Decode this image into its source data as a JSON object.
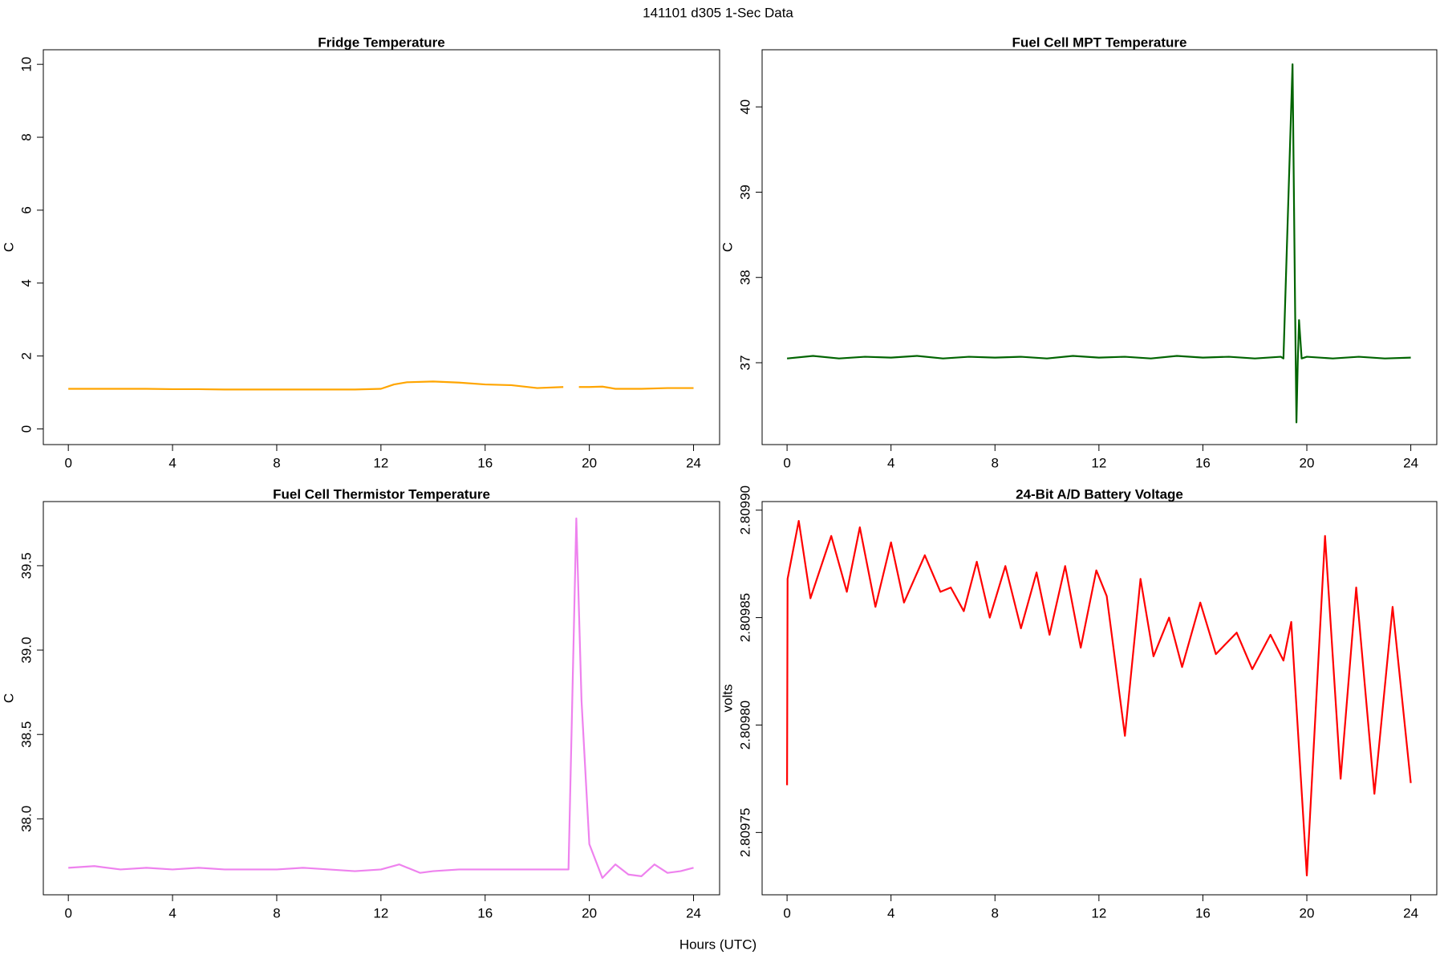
{
  "title": "141101   d305   1-Sec Data",
  "xlabel": "Hours (UTC)",
  "chart_data": [
    {
      "type": "line",
      "title": "Fridge Temperature",
      "ylabel": "C",
      "color": "#ffa500",
      "xlim": [
        -0.96,
        25.0
      ],
      "xticks": [
        0,
        4,
        8,
        12,
        16,
        20,
        24
      ],
      "ylim": [
        -0.43,
        10.4
      ],
      "yticks": [
        0,
        2,
        4,
        6,
        8,
        10
      ],
      "x": [
        0,
        1,
        2,
        3,
        4,
        5,
        6,
        7,
        8,
        9,
        10,
        11,
        12,
        12.5,
        13,
        14,
        15,
        16,
        17,
        18,
        19,
        19.3,
        19.6,
        20,
        20.5,
        21,
        22,
        23,
        24
      ],
      "values": [
        1.1,
        1.1,
        1.1,
        1.1,
        1.09,
        1.09,
        1.08,
        1.08,
        1.08,
        1.08,
        1.08,
        1.08,
        1.1,
        1.22,
        1.28,
        1.3,
        1.27,
        1.22,
        1.2,
        1.12,
        1.15,
        null,
        1.15,
        1.15,
        1.16,
        1.1,
        1.1,
        1.12,
        1.12
      ]
    },
    {
      "type": "line",
      "title": "Fuel Cell MPT Temperature",
      "ylabel": "C",
      "color": "#006400",
      "xlim": [
        -0.96,
        25.0
      ],
      "xticks": [
        0,
        4,
        8,
        12,
        16,
        20,
        24
      ],
      "ylim": [
        36.04,
        40.67
      ],
      "yticks": [
        37,
        38,
        39,
        40
      ],
      "x": [
        0,
        1,
        2,
        3,
        4,
        5,
        6,
        7,
        8,
        9,
        10,
        11,
        12,
        13,
        14,
        15,
        16,
        17,
        18,
        19,
        19.1,
        19.45,
        19.55,
        19.6,
        19.65,
        19.7,
        19.8,
        20,
        21,
        22,
        23,
        24
      ],
      "values": [
        37.05,
        37.08,
        37.05,
        37.07,
        37.06,
        37.08,
        37.05,
        37.07,
        37.06,
        37.07,
        37.05,
        37.08,
        37.06,
        37.07,
        37.05,
        37.08,
        37.06,
        37.07,
        37.05,
        37.07,
        37.05,
        40.5,
        37.6,
        36.3,
        37.0,
        37.5,
        37.05,
        37.07,
        37.05,
        37.07,
        37.05,
        37.06
      ]
    },
    {
      "type": "line",
      "title": "Fuel Cell Thermistor Temperature",
      "ylabel": "C",
      "color": "#ee82ee",
      "xlim": [
        -0.96,
        25.0
      ],
      "xticks": [
        0,
        4,
        8,
        12,
        16,
        20,
        24
      ],
      "ylim": [
        37.55,
        39.88
      ],
      "yticks": [
        {
          "value": 38.0,
          "label": "38.0"
        },
        38.5,
        {
          "value": 39.0,
          "label": "39.0"
        },
        39.5
      ],
      "x": [
        0,
        1,
        2,
        3,
        4,
        5,
        6,
        7,
        8,
        9,
        10,
        11,
        12,
        12.7,
        13.5,
        14,
        15,
        16,
        17,
        18,
        19,
        19.2,
        19.5,
        19.7,
        20,
        20.5,
        21,
        21.5,
        22,
        22.5,
        23,
        23.5,
        24
      ],
      "values": [
        37.71,
        37.72,
        37.7,
        37.71,
        37.7,
        37.71,
        37.7,
        37.7,
        37.7,
        37.71,
        37.7,
        37.69,
        37.7,
        37.73,
        37.68,
        37.69,
        37.7,
        37.7,
        37.7,
        37.7,
        37.7,
        37.7,
        39.78,
        38.7,
        37.85,
        37.65,
        37.73,
        37.67,
        37.66,
        37.73,
        37.68,
        37.69,
        37.71
      ]
    },
    {
      "type": "line",
      "title": "24-Bit A/D Battery Voltage",
      "ylabel": "volts",
      "color": "#ff0000",
      "xlim": [
        -0.96,
        25.0
      ],
      "xticks": [
        0,
        4,
        8,
        12,
        16,
        20,
        24
      ],
      "ylim": [
        2.809721,
        2.809904
      ],
      "yticks": [
        2.80975,
        {
          "value": 2.8098,
          "label": "2.80980"
        },
        2.80985,
        {
          "value": 2.8099,
          "label": "2.80990"
        }
      ],
      "x": [
        0,
        0.02,
        0.45,
        0.9,
        1.7,
        2.3,
        2.8,
        3.4,
        4.0,
        4.5,
        5.3,
        5.9,
        6.3,
        6.8,
        7.3,
        7.8,
        8.4,
        9.0,
        9.6,
        10.1,
        10.7,
        11.3,
        11.9,
        12.3,
        13.0,
        13.6,
        14.1,
        14.7,
        15.2,
        15.9,
        16.5,
        17.3,
        17.9,
        18.6,
        19.1,
        19.4,
        20.0,
        20.7,
        21.3,
        21.9,
        22.6,
        23.3,
        24.0
      ],
      "values": [
        2.809772,
        2.809868,
        2.809895,
        2.809859,
        2.809888,
        2.809862,
        2.809892,
        2.809855,
        2.809885,
        2.809857,
        2.809879,
        2.809862,
        2.809864,
        2.809853,
        2.809876,
        2.80985,
        2.809874,
        2.809845,
        2.809871,
        2.809842,
        2.809874,
        2.809836,
        2.809872,
        2.80986,
        2.809795,
        2.809868,
        2.809832,
        2.80985,
        2.809827,
        2.809857,
        2.809833,
        2.809843,
        2.809826,
        2.809842,
        2.80983,
        2.809848,
        2.80973,
        2.809888,
        2.809775,
        2.809864,
        2.809768,
        2.809855,
        2.809773
      ]
    }
  ]
}
